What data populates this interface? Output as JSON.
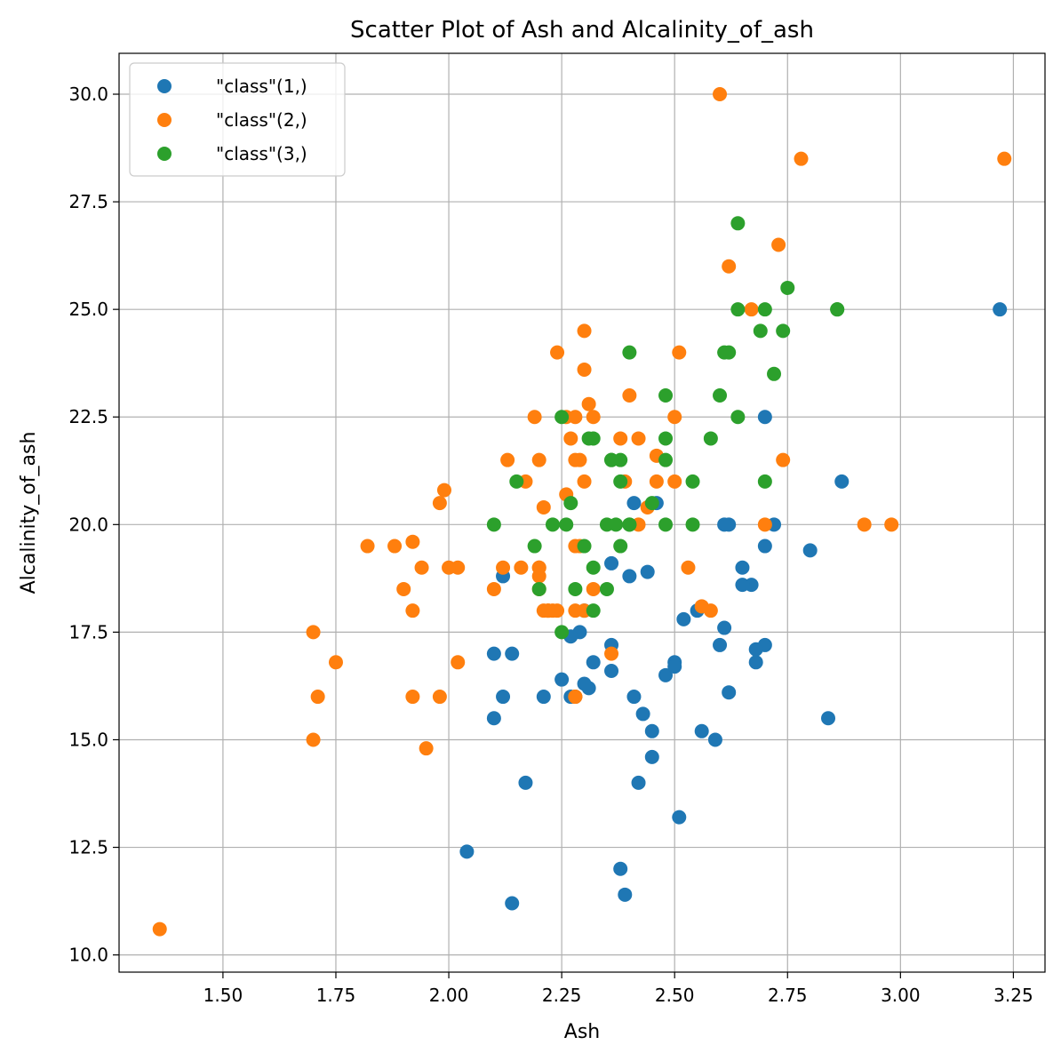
{
  "chart_data": {
    "type": "scatter",
    "title": "Scatter Plot of Ash and Alcalinity_of_ash",
    "xlabel": "Ash",
    "ylabel": "Alcalinity_of_ash",
    "xlim": [
      1.27,
      3.32
    ],
    "ylim": [
      9.6,
      30.95
    ],
    "xticks": [
      "1.50",
      "1.75",
      "2.00",
      "2.25",
      "2.50",
      "2.75",
      "3.00",
      "3.25"
    ],
    "yticks": [
      "10.0",
      "12.5",
      "15.0",
      "17.5",
      "20.0",
      "22.5",
      "25.0",
      "27.5",
      "30.0"
    ],
    "grid": true,
    "legend_position": "top-left",
    "series": [
      {
        "name": "\"class\"(1,)",
        "color": "#1f77b4",
        "points": [
          [
            2.43,
            15.6
          ],
          [
            2.14,
            11.2
          ],
          [
            2.67,
            18.6
          ],
          [
            2.5,
            16.8
          ],
          [
            2.87,
            21.0
          ],
          [
            2.45,
            15.2
          ],
          [
            2.45,
            14.6
          ],
          [
            2.61,
            17.6
          ],
          [
            2.17,
            14.0
          ],
          [
            2.27,
            16.0
          ],
          [
            2.3,
            18.0
          ],
          [
            2.32,
            16.8
          ],
          [
            2.41,
            16.0
          ],
          [
            2.39,
            11.4
          ],
          [
            2.38,
            12.0
          ],
          [
            2.7,
            17.2
          ],
          [
            2.72,
            20.0
          ],
          [
            2.62,
            20.0
          ],
          [
            2.48,
            16.5
          ],
          [
            2.56,
            15.2
          ],
          [
            2.28,
            16.0
          ],
          [
            2.65,
            18.6
          ],
          [
            2.36,
            16.6
          ],
          [
            2.52,
            17.8
          ],
          [
            2.61,
            20.0
          ],
          [
            3.22,
            25.0
          ],
          [
            2.62,
            16.1
          ],
          [
            2.14,
            17.0
          ],
          [
            2.8,
            19.4
          ],
          [
            2.21,
            16.0
          ],
          [
            2.7,
            22.5
          ],
          [
            2.36,
            17.2
          ],
          [
            2.36,
            19.1
          ],
          [
            2.7,
            19.5
          ],
          [
            2.65,
            19.0
          ],
          [
            2.41,
            20.5
          ],
          [
            2.84,
            15.5
          ],
          [
            2.55,
            18.0
          ],
          [
            2.1,
            15.5
          ],
          [
            2.51,
            13.2
          ],
          [
            2.31,
            16.2
          ],
          [
            2.12,
            18.8
          ],
          [
            2.59,
            15.0
          ],
          [
            2.29,
            17.5
          ],
          [
            2.1,
            17.0
          ],
          [
            2.44,
            18.9
          ],
          [
            2.12,
            16.0
          ],
          [
            2.4,
            18.8
          ],
          [
            2.27,
            17.4
          ],
          [
            2.04,
            12.4
          ],
          [
            2.6,
            17.2
          ],
          [
            2.42,
            14.0
          ],
          [
            2.68,
            16.8
          ],
          [
            2.25,
            16.4
          ],
          [
            2.46,
            20.5
          ],
          [
            2.3,
            16.3
          ],
          [
            2.68,
            17.1
          ],
          [
            2.5,
            16.7
          ]
        ]
      },
      {
        "name": "\"class\"(2,)",
        "color": "#ff7f0e",
        "points": [
          [
            1.36,
            10.6
          ],
          [
            2.28,
            16.0
          ],
          [
            2.02,
            16.8
          ],
          [
            1.92,
            16.0
          ],
          [
            2.16,
            19.0
          ],
          [
            2.53,
            19.0
          ],
          [
            2.56,
            18.1
          ],
          [
            1.7,
            17.5
          ],
          [
            1.92,
            18.0
          ],
          [
            2.36,
            17.0
          ],
          [
            1.75,
            16.8
          ],
          [
            2.21,
            18.0
          ],
          [
            2.67,
            25.0
          ],
          [
            2.24,
            24.0
          ],
          [
            2.6,
            30.0
          ],
          [
            2.3,
            21.0
          ],
          [
            1.71,
            16.0
          ],
          [
            2.51,
            24.0
          ],
          [
            2.32,
            22.5
          ],
          [
            2.58,
            18.0
          ],
          [
            2.24,
            18.0
          ],
          [
            2.73,
            26.5
          ],
          [
            2.31,
            22.8
          ],
          [
            2.98,
            20.0
          ],
          [
            2.5,
            22.5
          ],
          [
            2.28,
            18.0
          ],
          [
            2.2,
            18.8
          ],
          [
            1.7,
            15.0
          ],
          [
            1.94,
            19.0
          ],
          [
            2.22,
            18.0
          ],
          [
            2.3,
            24.5
          ],
          [
            1.9,
            18.5
          ],
          [
            2.28,
            21.5
          ],
          [
            2.2,
            19.0
          ],
          [
            2.26,
            20.7
          ],
          [
            2.62,
            26.0
          ],
          [
            2.22,
            18.0
          ],
          [
            2.78,
            28.5
          ],
          [
            2.5,
            21.0
          ],
          [
            2.2,
            21.5
          ],
          [
            2.21,
            20.4
          ],
          [
            2.29,
            21.5
          ],
          [
            1.92,
            19.6
          ],
          [
            2.44,
            20.4
          ],
          [
            2.02,
            19.0
          ],
          [
            2.92,
            20.0
          ],
          [
            2.2,
            19.0
          ],
          [
            2.27,
            22.0
          ],
          [
            2.3,
            23.6
          ],
          [
            1.98,
            20.5
          ],
          [
            1.82,
            19.5
          ],
          [
            1.88,
            19.5
          ],
          [
            1.99,
            20.8
          ],
          [
            2.0,
            19.0
          ],
          [
            2.26,
            22.5
          ],
          [
            2.46,
            21.6
          ],
          [
            2.42,
            22.0
          ],
          [
            2.38,
            22.0
          ],
          [
            2.28,
            19.5
          ],
          [
            2.7,
            20.0
          ],
          [
            2.19,
            22.5
          ],
          [
            2.4,
            23.0
          ],
          [
            2.32,
            18.5
          ],
          [
            2.17,
            21.0
          ],
          [
            2.42,
            20.0
          ],
          [
            2.13,
            21.5
          ],
          [
            2.39,
            21.0
          ],
          [
            1.95,
            14.8
          ],
          [
            1.98,
            16.0
          ],
          [
            2.28,
            22.5
          ],
          [
            2.74,
            21.5
          ],
          [
            2.1,
            18.5
          ],
          [
            3.23,
            28.5
          ],
          [
            2.46,
            21.0
          ],
          [
            2.3,
            18.0
          ],
          [
            2.12,
            19.0
          ],
          [
            2.23,
            18.0
          ],
          [
            2.29,
            19.5
          ],
          [
            2.28,
            16.0
          ],
          [
            2.2,
            18.5
          ]
        ]
      },
      {
        "name": "\"class\"(3,)",
        "color": "#2ca02c",
        "points": [
          [
            2.64,
            27.0
          ],
          [
            2.7,
            21.0
          ],
          [
            2.6,
            23.0
          ],
          [
            2.25,
            17.5
          ],
          [
            2.28,
            18.5
          ],
          [
            2.38,
            21.5
          ],
          [
            2.4,
            20.0
          ],
          [
            2.25,
            22.5
          ],
          [
            2.26,
            20.0
          ],
          [
            2.69,
            24.5
          ],
          [
            2.74,
            24.5
          ],
          [
            2.48,
            23.0
          ],
          [
            2.15,
            21.0
          ],
          [
            2.61,
            24.0
          ],
          [
            2.48,
            21.5
          ],
          [
            2.62,
            24.0
          ],
          [
            2.75,
            25.5
          ],
          [
            2.64,
            25.0
          ],
          [
            2.27,
            20.5
          ],
          [
            2.58,
            22.0
          ],
          [
            2.35,
            18.5
          ],
          [
            2.36,
            21.5
          ],
          [
            2.2,
            18.5
          ],
          [
            2.32,
            22.0
          ],
          [
            2.54,
            21.0
          ],
          [
            2.32,
            18.0
          ],
          [
            2.7,
            25.0
          ],
          [
            2.86,
            25.0
          ],
          [
            2.86,
            25.0
          ],
          [
            2.72,
            23.5
          ],
          [
            2.48,
            22.0
          ],
          [
            2.4,
            24.0
          ],
          [
            2.36,
            21.5
          ],
          [
            2.54,
            20.0
          ],
          [
            2.64,
            22.5
          ],
          [
            2.35,
            20.0
          ],
          [
            2.23,
            20.0
          ],
          [
            2.38,
            19.5
          ],
          [
            2.3,
            19.5
          ],
          [
            2.19,
            19.5
          ],
          [
            2.48,
            20.0
          ],
          [
            2.1,
            20.0
          ],
          [
            2.37,
            20.0
          ],
          [
            2.4,
            20.0
          ],
          [
            2.38,
            21.0
          ],
          [
            2.31,
            22.0
          ],
          [
            2.45,
            20.5
          ],
          [
            2.32,
            19.0
          ]
        ]
      }
    ]
  }
}
